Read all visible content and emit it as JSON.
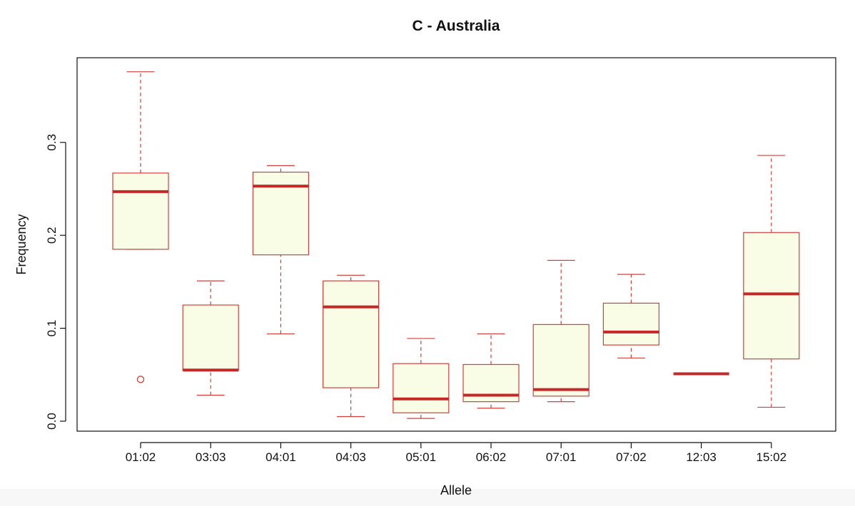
{
  "chart_data": {
    "type": "boxplot",
    "title": "C - Australia",
    "xlabel": "Allele",
    "ylabel": "Frequency",
    "ylim": [
      -0.01,
      0.39
    ],
    "yticks": [
      "0.0",
      "0.1",
      "0.2",
      "0.3"
    ],
    "ytick_values": [
      0.0,
      0.1,
      0.2,
      0.3
    ],
    "categories": [
      "01:02",
      "03:03",
      "04:01",
      "04:03",
      "05:01",
      "06:02",
      "07:01",
      "07:02",
      "12:03",
      "15:02"
    ],
    "boxes": [
      {
        "category": "01:02",
        "whisker_low": 0.185,
        "q1": 0.185,
        "median": 0.247,
        "q3": 0.267,
        "whisker_high": 0.376,
        "outliers": [
          0.045
        ]
      },
      {
        "category": "03:03",
        "whisker_low": 0.028,
        "q1": 0.055,
        "median": 0.055,
        "q3": 0.125,
        "whisker_high": 0.151,
        "outliers": []
      },
      {
        "category": "04:01",
        "whisker_low": 0.094,
        "q1": 0.179,
        "median": 0.253,
        "q3": 0.268,
        "whisker_high": 0.275,
        "outliers": []
      },
      {
        "category": "04:03",
        "whisker_low": 0.005,
        "q1": 0.036,
        "median": 0.123,
        "q3": 0.151,
        "whisker_high": 0.157,
        "outliers": []
      },
      {
        "category": "05:01",
        "whisker_low": 0.003,
        "q1": 0.009,
        "median": 0.024,
        "q3": 0.062,
        "whisker_high": 0.089,
        "outliers": []
      },
      {
        "category": "06:02",
        "whisker_low": 0.014,
        "q1": 0.021,
        "median": 0.028,
        "q3": 0.061,
        "whisker_high": 0.094,
        "outliers": []
      },
      {
        "category": "07:01",
        "whisker_low": 0.021,
        "q1": 0.027,
        "median": 0.034,
        "q3": 0.104,
        "whisker_high": 0.173,
        "outliers": []
      },
      {
        "category": "07:02",
        "whisker_low": 0.068,
        "q1": 0.082,
        "median": 0.096,
        "q3": 0.127,
        "whisker_high": 0.158,
        "outliers": []
      },
      {
        "category": "12:03",
        "whisker_low": 0.051,
        "q1": 0.051,
        "median": 0.051,
        "q3": 0.051,
        "whisker_high": 0.051,
        "outliers": []
      },
      {
        "category": "15:02",
        "whisker_low": 0.015,
        "q1": 0.067,
        "median": 0.137,
        "q3": 0.203,
        "whisker_high": 0.286,
        "outliers": []
      }
    ],
    "grid": false,
    "legend": "none",
    "colors": {
      "box_fill": "#fafde6",
      "box_border": "#d43f3a",
      "median": "#c62828",
      "axis": "#111111"
    }
  }
}
